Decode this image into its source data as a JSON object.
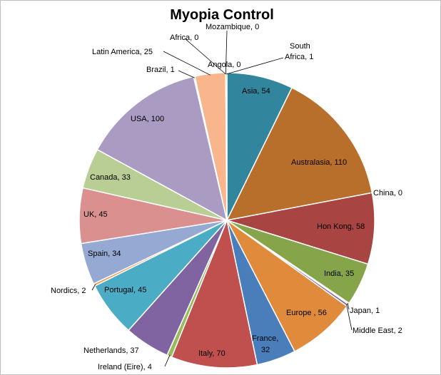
{
  "chart_data": {
    "type": "pie",
    "title": "Myopia Control",
    "slices": [
      {
        "label": "Asia",
        "value": 54,
        "color": "#31859C"
      },
      {
        "label": "Australasia",
        "value": 110,
        "color": "#B86F2C"
      },
      {
        "label": "China",
        "value": 0,
        "color": "#7E9B3B"
      },
      {
        "label": "Hon Kong",
        "value": 58,
        "color": "#A84442"
      },
      {
        "label": "India",
        "value": 35,
        "color": "#86A44A"
      },
      {
        "label": "Japan",
        "value": 1,
        "color": "#4BACC6"
      },
      {
        "label": "Middle East",
        "value": 2,
        "color": "#7F6AA0"
      },
      {
        "label": "Europe ",
        "value": 56,
        "color": "#E08A3C"
      },
      {
        "label": "France",
        "value": 32,
        "color": "#4A7EBB"
      },
      {
        "label": "Italy",
        "value": 70,
        "color": "#C0504D"
      },
      {
        "label": "Ireland (Eire)",
        "value": 4,
        "color": "#9BBB59"
      },
      {
        "label": "Netherlands",
        "value": 37,
        "color": "#8064A2"
      },
      {
        "label": "Portugal",
        "value": 45,
        "color": "#4BACC6"
      },
      {
        "label": "Nordics",
        "value": 2,
        "color": "#F79646"
      },
      {
        "label": "Spain",
        "value": 34,
        "color": "#95A9D3"
      },
      {
        "label": "UK",
        "value": 45,
        "color": "#D9908E"
      },
      {
        "label": "Canada",
        "value": 33,
        "color": "#B9CE95"
      },
      {
        "label": "USA",
        "value": 100,
        "color": "#A99BC1"
      },
      {
        "label": "Brazil",
        "value": 1,
        "color": "#93CDDD"
      },
      {
        "label": "Latin America",
        "value": 25,
        "color": "#F9B58B"
      },
      {
        "label": "Africa",
        "value": 0,
        "color": "#31859C"
      },
      {
        "label": "Angola",
        "value": 0,
        "color": "#B86F2C"
      },
      {
        "label": "Mozambique",
        "value": 0,
        "color": "#A84442"
      },
      {
        "label": "South Africa",
        "value": 1,
        "color": "#86A44A"
      }
    ],
    "label_text": [
      "Asia, 54",
      "Australasia, 110",
      "China, 0",
      "Hon Kong, 58",
      "India, 35",
      "Japan, 1",
      "Middle East, 2",
      "Europe , 56",
      "France, ",
      "32",
      "Italy, 70",
      "Ireland (Eire), 4",
      "Netherlands, 37",
      "Portugal, 45",
      "Nordics, 2",
      "Spain, 34",
      "UK, 45",
      "Canada, 33",
      "USA,  100",
      "Brazil, 1",
      "Latin America, 25",
      "Africa, 0",
      "Angola, 0",
      "Mozambique, 0",
      "South ",
      "Africa, 1"
    ]
  }
}
